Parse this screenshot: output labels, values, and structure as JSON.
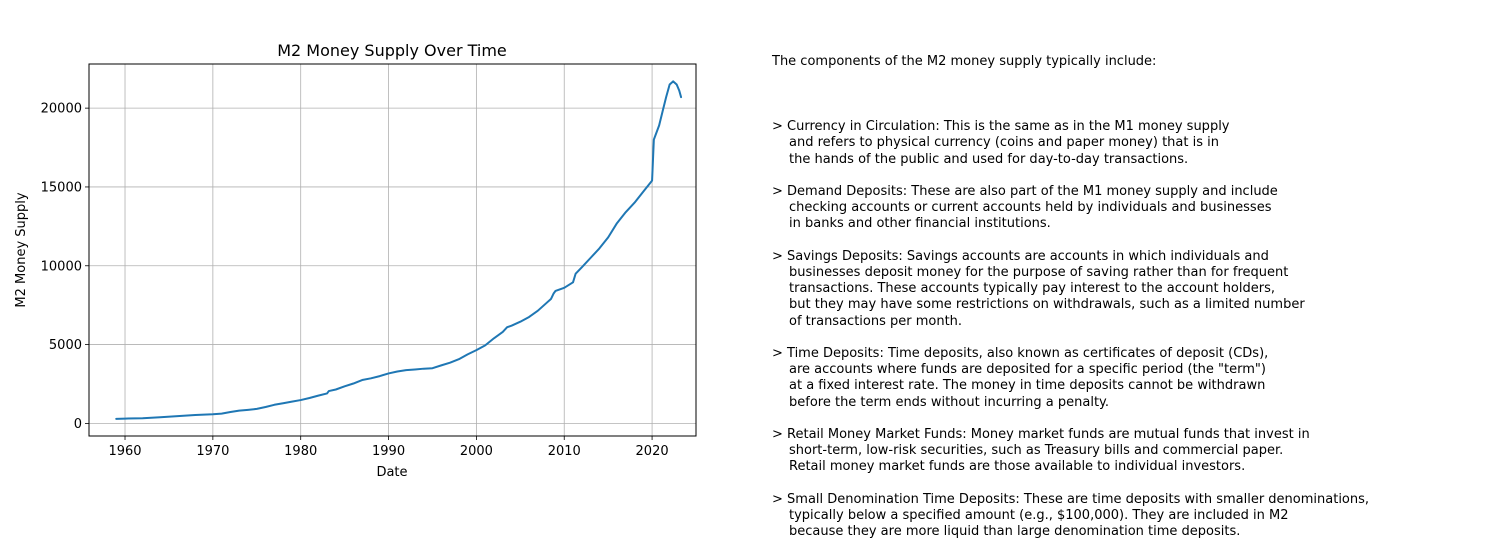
{
  "chart_data": {
    "type": "line",
    "title": "M2 Money Supply Over Time",
    "xlabel": "Date",
    "ylabel": "M2 Money Supply",
    "xlim": [
      1955.9,
      2025.0
    ],
    "ylim": [
      -800,
      22800
    ],
    "x_ticks": [
      1960,
      1970,
      1980,
      1990,
      2000,
      2010,
      2020
    ],
    "y_ticks": [
      0,
      5000,
      10000,
      15000,
      20000
    ],
    "grid": true,
    "color": "#1f77b4",
    "series": [
      {
        "points": [
          [
            1959.0,
            287
          ],
          [
            1960.0,
            305
          ],
          [
            1962.0,
            330
          ],
          [
            1964.0,
            390
          ],
          [
            1966.0,
            460
          ],
          [
            1968.0,
            530
          ],
          [
            1970.0,
            580
          ],
          [
            1971.0,
            620
          ],
          [
            1972.0,
            720
          ],
          [
            1973.0,
            810
          ],
          [
            1974.0,
            860
          ],
          [
            1975.0,
            920
          ],
          [
            1976.0,
            1040
          ],
          [
            1977.0,
            1180
          ],
          [
            1978.0,
            1280
          ],
          [
            1979.0,
            1380
          ],
          [
            1980.0,
            1480
          ],
          [
            1981.0,
            1610
          ],
          [
            1982.0,
            1760
          ],
          [
            1983.0,
            1900
          ],
          [
            1983.2,
            2050
          ],
          [
            1984.0,
            2150
          ],
          [
            1985.0,
            2350
          ],
          [
            1986.0,
            2530
          ],
          [
            1987.0,
            2750
          ],
          [
            1988.0,
            2860
          ],
          [
            1989.0,
            3000
          ],
          [
            1990.0,
            3170
          ],
          [
            1991.0,
            3290
          ],
          [
            1992.0,
            3380
          ],
          [
            1993.0,
            3420
          ],
          [
            1994.0,
            3470
          ],
          [
            1995.0,
            3500
          ],
          [
            1996.0,
            3680
          ],
          [
            1997.0,
            3850
          ],
          [
            1998.0,
            4070
          ],
          [
            1999.0,
            4380
          ],
          [
            2000.0,
            4650
          ],
          [
            2001.0,
            4950
          ],
          [
            2002.0,
            5400
          ],
          [
            2003.0,
            5800
          ],
          [
            2003.5,
            6100
          ],
          [
            2004.0,
            6200
          ],
          [
            2005.0,
            6450
          ],
          [
            2006.0,
            6750
          ],
          [
            2007.0,
            7150
          ],
          [
            2008.0,
            7650
          ],
          [
            2008.5,
            7900
          ],
          [
            2008.8,
            8250
          ],
          [
            2009.0,
            8400
          ],
          [
            2010.0,
            8600
          ],
          [
            2011.0,
            8950
          ],
          [
            2011.3,
            9500
          ],
          [
            2012.0,
            9900
          ],
          [
            2013.0,
            10500
          ],
          [
            2014.0,
            11100
          ],
          [
            2015.0,
            11800
          ],
          [
            2016.0,
            12700
          ],
          [
            2017.0,
            13400
          ],
          [
            2018.0,
            14000
          ],
          [
            2019.0,
            14700
          ],
          [
            2020.0,
            15400
          ],
          [
            2020.2,
            18000
          ],
          [
            2020.8,
            18900
          ],
          [
            2021.2,
            19800
          ],
          [
            2021.6,
            20700
          ],
          [
            2022.0,
            21500
          ],
          [
            2022.4,
            21700
          ],
          [
            2022.8,
            21500
          ],
          [
            2023.1,
            21100
          ],
          [
            2023.3,
            20700
          ]
        ]
      }
    ]
  },
  "notes": {
    "intro": "The components of the M2 money supply typically include:",
    "items": [
      [
        "> Currency in Circulation: This is the same as in the M1 money supply",
        "and refers to physical currency (coins and paper money) that is in",
        "the hands of the public and used for day-to-day transactions."
      ],
      [
        "> Demand Deposits: These are also part of the M1 money supply and include",
        "checking accounts or current accounts held by individuals and businesses",
        "in banks and other financial institutions."
      ],
      [
        "> Savings Deposits: Savings accounts are accounts in which individuals and",
        "businesses deposit money for the purpose of saving rather than for frequent",
        "transactions. These accounts typically pay interest to the account holders,",
        "but they may have some restrictions on withdrawals, such as a limited number",
        "of transactions per month."
      ],
      [
        "> Time Deposits: Time deposits, also known as certificates of deposit (CDs),",
        "are accounts where funds are deposited for a specific period (the \"term\")",
        "at a fixed interest rate. The money in time deposits cannot be withdrawn",
        "before the term ends without incurring a penalty."
      ],
      [
        "> Retail Money Market Funds: Money market funds are mutual funds that invest in",
        "short-term, low-risk securities, such as Treasury bills and commercial paper.",
        "Retail money market funds are those available to individual investors."
      ],
      [
        "> Small Denomination Time Deposits: These are time deposits with smaller denominations,",
        "typically below a specified amount (e.g., $100,000). They are included in M2",
        "because they are more liquid than large denomination time deposits."
      ]
    ]
  }
}
